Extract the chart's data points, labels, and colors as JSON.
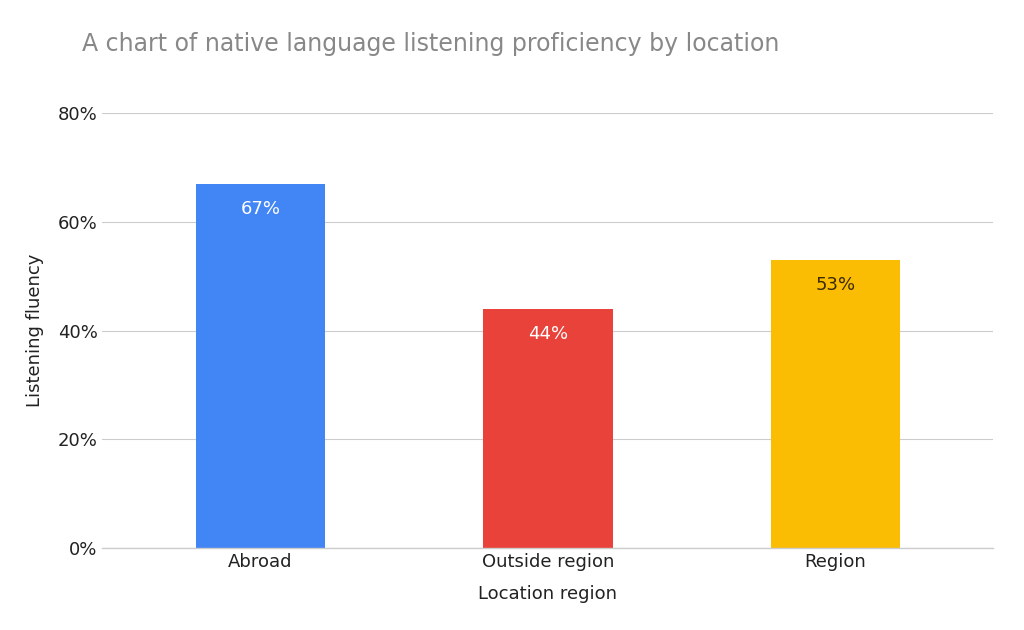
{
  "title": "A chart of native language listening proficiency by location",
  "categories": [
    "Abroad",
    "Outside region",
    "Region"
  ],
  "values": [
    67,
    44,
    53
  ],
  "bar_colors": [
    "#4285F4",
    "#E8423A",
    "#FBBC04"
  ],
  "label_colors": [
    "white",
    "white",
    "#3a2a00"
  ],
  "xlabel": "Location region",
  "ylabel": "Listening fluency",
  "ylim": [
    0,
    80
  ],
  "yticks": [
    0,
    20,
    40,
    60,
    80
  ],
  "background_color": "#ffffff",
  "title_color": "#888888",
  "axis_label_color": "#222222",
  "tick_color": "#222222",
  "grid_color": "#cccccc",
  "title_fontsize": 17,
  "label_fontsize": 13,
  "tick_fontsize": 13,
  "bar_label_fontsize": 13,
  "bar_width": 0.45
}
